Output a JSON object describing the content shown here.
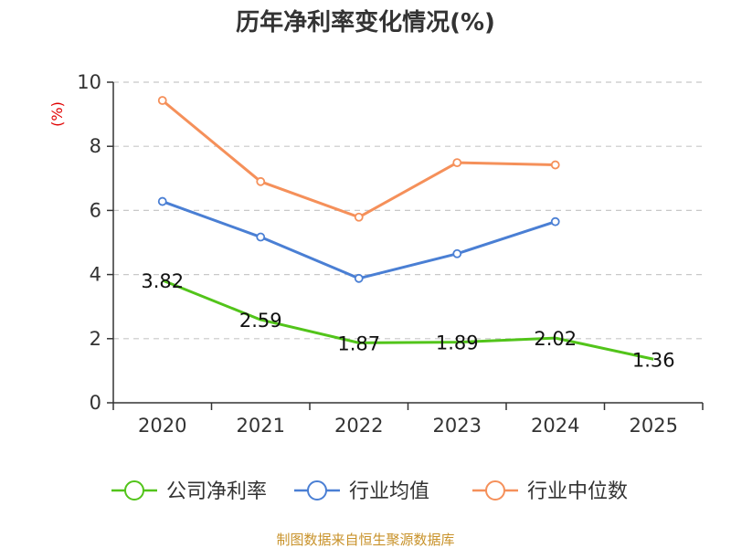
{
  "chart_data": {
    "type": "line",
    "title": "历年净利率变化情况(%)",
    "ylabel": "(%)",
    "categories": [
      "2020",
      "2021",
      "2022",
      "2023",
      "2024",
      "2025"
    ],
    "ylim": [
      0,
      10
    ],
    "yticks": [
      "0",
      "2",
      "4",
      "6",
      "8",
      "10"
    ],
    "grid": true,
    "legend_position": "bottom",
    "series": [
      {
        "name": "公司净利率",
        "color": "#52c41a",
        "values": [
          3.82,
          2.59,
          1.87,
          1.89,
          2.02,
          1.36
        ],
        "labels": [
          "3.82",
          "2.59",
          "1.87",
          "1.89",
          "2.02",
          "1.36"
        ],
        "markers": false
      },
      {
        "name": "行业均值",
        "color": "#4a7fd4",
        "values": [
          6.28,
          5.17,
          3.88,
          4.65,
          5.65,
          null
        ],
        "markers": true
      },
      {
        "name": "行业中位数",
        "color": "#f5905a",
        "values": [
          9.43,
          6.9,
          5.79,
          7.49,
          7.42,
          null
        ],
        "markers": true
      }
    ]
  },
  "source": "制图数据来自恒生聚源数据库"
}
